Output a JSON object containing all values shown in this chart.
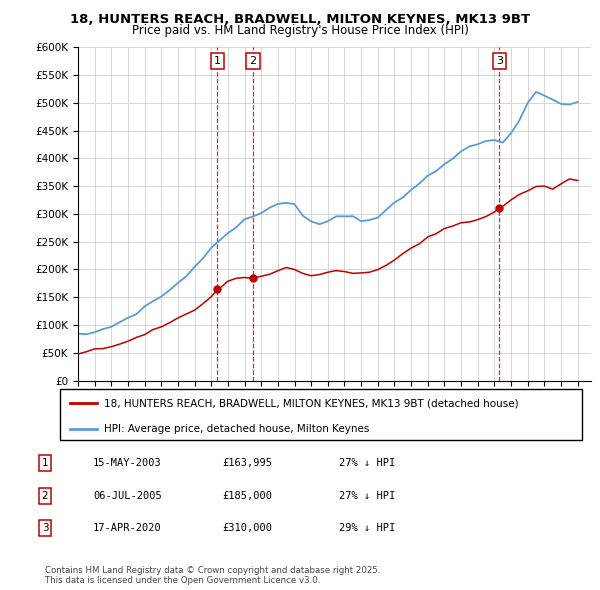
{
  "title_line1": "18, HUNTERS REACH, BRADWELL, MILTON KEYNES, MK13 9BT",
  "title_line2": "Price paid vs. HM Land Registry's House Price Index (HPI)",
  "ylabel_ticks": [
    "£0",
    "£50K",
    "£100K",
    "£150K",
    "£200K",
    "£250K",
    "£300K",
    "£350K",
    "£400K",
    "£450K",
    "£500K",
    "£550K",
    "£600K"
  ],
  "ytick_values": [
    0,
    50000,
    100000,
    150000,
    200000,
    250000,
    300000,
    350000,
    400000,
    450000,
    500000,
    550000,
    600000
  ],
  "hpi_color": "#5b9bd5",
  "price_color": "#c00000",
  "background_color": "#ffffff",
  "grid_color": "#d0d0d0",
  "sales": [
    {
      "num": 1,
      "date": "15-MAY-2003",
      "price": 163995,
      "x_year": 2003.37,
      "label": "1"
    },
    {
      "num": 2,
      "date": "06-JUL-2005",
      "price": 185000,
      "x_year": 2005.51,
      "label": "2"
    },
    {
      "num": 3,
      "date": "17-APR-2020",
      "price": 310000,
      "x_year": 2020.29,
      "label": "3"
    }
  ],
  "legend_entries": [
    "18, HUNTERS REACH, BRADWELL, MILTON KEYNES, MK13 9BT (detached house)",
    "HPI: Average price, detached house, Milton Keynes"
  ],
  "table_rows": [
    [
      "1",
      "15-MAY-2003",
      "£163,995",
      "27% ↓ HPI"
    ],
    [
      "2",
      "06-JUL-2005",
      "£185,000",
      "27% ↓ HPI"
    ],
    [
      "3",
      "17-APR-2020",
      "£310,000",
      "29% ↓ HPI"
    ]
  ],
  "footer_text": "Contains HM Land Registry data © Crown copyright and database right 2025.\nThis data is licensed under the Open Government Licence v3.0.",
  "xmin": 1995,
  "xmax": 2025.8,
  "ymin": 0,
  "ymax": 600000,
  "hpi_years": [
    1995.0,
    1995.5,
    1996.0,
    1996.5,
    1997.0,
    1997.5,
    1998.0,
    1998.5,
    1999.0,
    1999.5,
    2000.0,
    2000.5,
    2001.0,
    2001.5,
    2002.0,
    2002.5,
    2003.0,
    2003.5,
    2004.0,
    2004.5,
    2005.0,
    2005.5,
    2006.0,
    2006.5,
    2007.0,
    2007.5,
    2008.0,
    2008.5,
    2009.0,
    2009.5,
    2010.0,
    2010.5,
    2011.0,
    2011.5,
    2012.0,
    2012.5,
    2013.0,
    2013.5,
    2014.0,
    2014.5,
    2015.0,
    2015.5,
    2016.0,
    2016.5,
    2017.0,
    2017.5,
    2018.0,
    2018.5,
    2019.0,
    2019.5,
    2020.0,
    2020.5,
    2021.0,
    2021.5,
    2022.0,
    2022.5,
    2023.0,
    2023.5,
    2024.0,
    2024.5,
    2025.0
  ],
  "hpi_vals": [
    82000,
    84000,
    87000,
    92000,
    98000,
    105000,
    113000,
    122000,
    132000,
    142000,
    152000,
    163000,
    175000,
    188000,
    205000,
    222000,
    238000,
    252000,
    265000,
    278000,
    288000,
    295000,
    302000,
    308000,
    318000,
    322000,
    318000,
    300000,
    285000,
    282000,
    288000,
    294000,
    298000,
    295000,
    290000,
    290000,
    295000,
    305000,
    318000,
    330000,
    342000,
    355000,
    368000,
    378000,
    392000,
    402000,
    412000,
    418000,
    425000,
    432000,
    430000,
    428000,
    445000,
    468000,
    500000,
    520000,
    515000,
    505000,
    498000,
    495000,
    502000
  ],
  "red_years": [
    1995.0,
    1995.5,
    1996.0,
    1996.5,
    1997.0,
    1997.5,
    1998.0,
    1998.5,
    1999.0,
    1999.5,
    2000.0,
    2000.5,
    2001.0,
    2001.5,
    2002.0,
    2002.5,
    2003.0,
    2003.37,
    2003.5,
    2004.0,
    2004.5,
    2005.0,
    2005.51,
    2006.0,
    2006.5,
    2007.0,
    2007.5,
    2008.0,
    2008.5,
    2009.0,
    2009.5,
    2010.0,
    2010.5,
    2011.0,
    2011.5,
    2012.0,
    2012.5,
    2013.0,
    2013.5,
    2014.0,
    2014.5,
    2015.0,
    2015.5,
    2016.0,
    2016.5,
    2017.0,
    2017.5,
    2018.0,
    2018.5,
    2019.0,
    2019.5,
    2020.0,
    2020.29,
    2020.5,
    2021.0,
    2021.5,
    2022.0,
    2022.5,
    2023.0,
    2023.5,
    2024.0,
    2024.5,
    2025.0
  ],
  "red_vals": [
    50000,
    52000,
    55000,
    58000,
    62000,
    67000,
    72000,
    78000,
    84000,
    90000,
    97000,
    104000,
    111000,
    118000,
    127000,
    138000,
    150000,
    163995,
    168000,
    178000,
    183000,
    185000,
    185000,
    188000,
    192000,
    198000,
    202000,
    198000,
    192000,
    188000,
    190000,
    195000,
    198000,
    197000,
    193000,
    191000,
    194000,
    200000,
    208000,
    218000,
    228000,
    238000,
    248000,
    258000,
    265000,
    272000,
    278000,
    282000,
    286000,
    290000,
    295000,
    302000,
    310000,
    315000,
    325000,
    335000,
    342000,
    350000,
    348000,
    345000,
    355000,
    362000,
    360000
  ]
}
